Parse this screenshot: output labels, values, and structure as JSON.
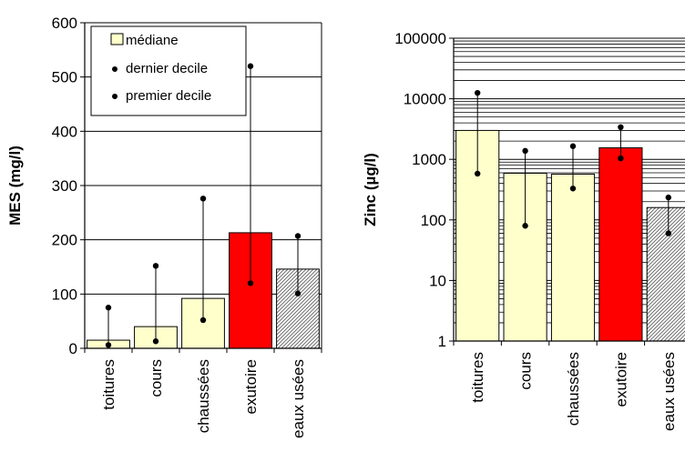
{
  "chart_data": [
    {
      "type": "bar",
      "ylabel": "MES (mg/l)",
      "ylim": [
        0,
        600
      ],
      "yticks": [
        0,
        100,
        200,
        300,
        400,
        500,
        600
      ],
      "y_scale": "linear",
      "grid": true,
      "legend_position": "top-left",
      "categories": [
        "toitures",
        "cours",
        "chaussées",
        "exutoire",
        "eaux usées"
      ],
      "series": [
        {
          "name": "médiane",
          "values": [
            15,
            40,
            92,
            213,
            146
          ]
        },
        {
          "name": "dernier decile",
          "values": [
            75,
            152,
            276,
            520,
            207
          ]
        },
        {
          "name": "premier decile",
          "values": [
            6,
            13,
            52,
            120,
            101
          ]
        }
      ],
      "bar_fills": [
        "#ffffcc",
        "#ffffcc",
        "#ffffcc",
        "#ff0000",
        "hatched-gray"
      ]
    },
    {
      "type": "bar",
      "ylabel": "Zinc (µg/l)",
      "ylim": [
        1,
        100000
      ],
      "yticks": [
        1,
        10,
        100,
        1000,
        10000,
        100000
      ],
      "y_scale": "log",
      "grid": true,
      "categories": [
        "toitures",
        "cours",
        "chaussées",
        "exutoire",
        "eaux usées"
      ],
      "series": [
        {
          "name": "médiane",
          "values": [
            3000,
            590,
            570,
            1550,
            160
          ]
        },
        {
          "name": "dernier decile",
          "values": [
            12500,
            1380,
            1650,
            3400,
            235
          ]
        },
        {
          "name": "premier decile",
          "values": [
            580,
            80,
            330,
            1040,
            60
          ]
        }
      ],
      "bar_fills": [
        "#ffffcc",
        "#ffffcc",
        "#ffffcc",
        "#ff0000",
        "hatched-gray"
      ]
    }
  ]
}
